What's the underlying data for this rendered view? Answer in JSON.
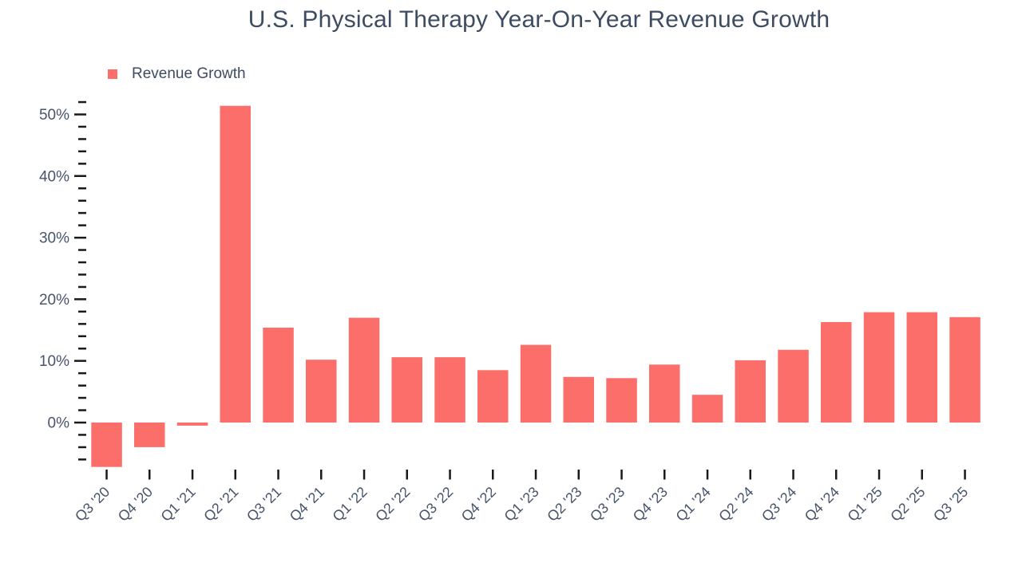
{
  "chart_data": {
    "type": "bar",
    "title": "U.S. Physical Therapy Year-On-Year Revenue Growth",
    "legend": {
      "label": "Revenue Growth",
      "position": "top-left"
    },
    "categories": [
      "Q3 '20",
      "Q4 '20",
      "Q1 '21",
      "Q2 '21",
      "Q3 '21",
      "Q4 '21",
      "Q1 '22",
      "Q2 '22",
      "Q3 '22",
      "Q4 '22",
      "Q1 '23",
      "Q2 '23",
      "Q3 '23",
      "Q4 '23",
      "Q1 '24",
      "Q2 '24",
      "Q3 '24",
      "Q4 '24",
      "Q1 '25",
      "Q2 '25",
      "Q3 '25"
    ],
    "series": [
      {
        "name": "Revenue Growth",
        "values": [
          -7.2,
          -4.0,
          -0.5,
          51.4,
          15.4,
          10.2,
          17.0,
          10.6,
          10.6,
          8.5,
          12.6,
          7.4,
          7.2,
          9.4,
          4.5,
          10.1,
          11.8,
          16.3,
          17.9,
          17.9,
          17.1
        ]
      }
    ],
    "xlabel": "",
    "ylabel": "",
    "y_axis": {
      "unit": "%",
      "major_ticks": [
        {
          "value": 0,
          "label": "0%"
        },
        {
          "value": 10,
          "label": "10%"
        },
        {
          "value": 20,
          "label": "20%"
        },
        {
          "value": 30,
          "label": "30%"
        },
        {
          "value": 40,
          "label": "40%"
        },
        {
          "value": 50,
          "label": "50%"
        }
      ],
      "minor_tick_step": 2,
      "minor_tick_min": -6,
      "minor_tick_max": 52,
      "ylim": [
        -7.4,
        52.4
      ]
    },
    "grid": "off"
  },
  "colors": {
    "bar": "#fb6e69",
    "title_text": "#3e4c61",
    "axis_text": "#47556b",
    "tick": "#1a1a1a",
    "background": "#ffffff"
  }
}
